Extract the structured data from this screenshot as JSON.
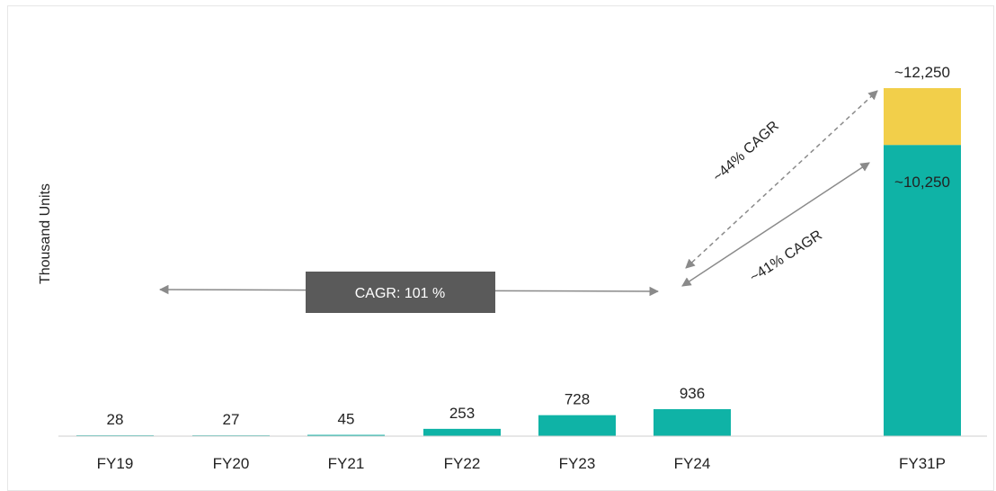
{
  "chart_data": {
    "type": "bar",
    "ylabel": "Thousand Units",
    "categories": [
      "FY19",
      "FY20",
      "FY21",
      "FY22",
      "FY23",
      "FY24",
      "FY31P"
    ],
    "series": [
      {
        "values": [
          28,
          27,
          45,
          253,
          728,
          936,
          10250
        ]
      },
      {
        "values": [
          0,
          0,
          0,
          0,
          0,
          0,
          2000
        ]
      }
    ],
    "data_labels": [
      "28",
      "27",
      "45",
      "253",
      "728",
      "936",
      "~12,250"
    ],
    "inner_label": "~10,250",
    "annotations": {
      "historical_cagr": "CAGR: 101 %",
      "cagr_solid": "~41% CAGR",
      "cagr_dashed": "~44% CAGR"
    },
    "ylim": [
      0,
      12250
    ],
    "grid": false
  },
  "colors": {
    "teal": "#0fb3a6",
    "yellow": "#f2cf4a",
    "box": "#5a5a5a",
    "arrow": "#8a8a8a"
  }
}
